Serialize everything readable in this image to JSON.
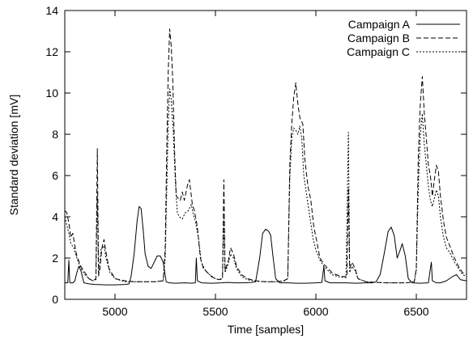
{
  "chart_data": {
    "type": "line",
    "title": "",
    "xlabel": "Time [samples]",
    "ylabel": "Standard deviation [mV]",
    "xlim": [
      4750,
      6750
    ],
    "ylim": [
      0,
      14
    ],
    "x_ticks": [
      5000,
      5500,
      6000,
      6500
    ],
    "y_ticks": [
      0,
      2,
      4,
      6,
      8,
      10,
      12,
      14
    ],
    "grid": false,
    "legend_position": "top-right",
    "series": [
      {
        "name": "Campaign A",
        "style": "solid",
        "points": [
          [
            4750,
            0.8
          ],
          [
            4765,
            0.8
          ],
          [
            4770,
            1.9
          ],
          [
            4775,
            0.8
          ],
          [
            4790,
            0.8
          ],
          [
            4800,
            0.9
          ],
          [
            4810,
            1.3
          ],
          [
            4820,
            1.6
          ],
          [
            4830,
            1.4
          ],
          [
            4845,
            0.8
          ],
          [
            4870,
            0.75
          ],
          [
            4900,
            0.72
          ],
          [
            4950,
            0.7
          ],
          [
            5000,
            0.7
          ],
          [
            5050,
            0.72
          ],
          [
            5070,
            0.75
          ],
          [
            5080,
            1.1
          ],
          [
            5095,
            2.2
          ],
          [
            5110,
            3.8
          ],
          [
            5120,
            4.5
          ],
          [
            5130,
            4.4
          ],
          [
            5140,
            3.4
          ],
          [
            5150,
            2.2
          ],
          [
            5165,
            1.6
          ],
          [
            5180,
            1.5
          ],
          [
            5195,
            1.8
          ],
          [
            5210,
            2.1
          ],
          [
            5225,
            2.1
          ],
          [
            5240,
            1.8
          ],
          [
            5255,
            0.85
          ],
          [
            5270,
            0.8
          ],
          [
            5300,
            0.78
          ],
          [
            5350,
            0.8
          ],
          [
            5380,
            0.78
          ],
          [
            5400,
            0.8
          ],
          [
            5405,
            2.0
          ],
          [
            5410,
            0.9
          ],
          [
            5430,
            0.8
          ],
          [
            5480,
            0.78
          ],
          [
            5530,
            0.8
          ],
          [
            5560,
            0.82
          ],
          [
            5600,
            0.8
          ],
          [
            5640,
            0.8
          ],
          [
            5680,
            0.82
          ],
          [
            5700,
            0.85
          ],
          [
            5720,
            2.0
          ],
          [
            5735,
            3.2
          ],
          [
            5750,
            3.4
          ],
          [
            5765,
            3.3
          ],
          [
            5775,
            3.1
          ],
          [
            5785,
            2.2
          ],
          [
            5800,
            1.0
          ],
          [
            5820,
            0.8
          ],
          [
            5860,
            0.8
          ],
          [
            5900,
            0.78
          ],
          [
            5950,
            0.78
          ],
          [
            6000,
            0.8
          ],
          [
            6030,
            0.82
          ],
          [
            6040,
            1.6
          ],
          [
            6045,
            0.9
          ],
          [
            6070,
            0.8
          ],
          [
            6100,
            0.8
          ],
          [
            6150,
            0.8
          ],
          [
            6200,
            0.78
          ],
          [
            6250,
            0.8
          ],
          [
            6280,
            0.8
          ],
          [
            6300,
            0.85
          ],
          [
            6320,
            1.2
          ],
          [
            6340,
            2.2
          ],
          [
            6360,
            3.3
          ],
          [
            6375,
            3.5
          ],
          [
            6390,
            3.1
          ],
          [
            6405,
            2.0
          ],
          [
            6420,
            2.4
          ],
          [
            6430,
            2.7
          ],
          [
            6445,
            2.1
          ],
          [
            6460,
            1.0
          ],
          [
            6480,
            0.8
          ],
          [
            6520,
            0.78
          ],
          [
            6560,
            0.8
          ],
          [
            6570,
            1.5
          ],
          [
            6575,
            1.8
          ],
          [
            6580,
            0.9
          ],
          [
            6600,
            0.8
          ],
          [
            6620,
            0.8
          ],
          [
            6650,
            0.9
          ],
          [
            6680,
            1.1
          ],
          [
            6700,
            1.2
          ],
          [
            6720,
            0.95
          ],
          [
            6750,
            0.9
          ]
        ]
      },
      {
        "name": "Campaign B",
        "style": "dashed",
        "points": [
          [
            4750,
            4.3
          ],
          [
            4760,
            4.2
          ],
          [
            4770,
            3.7
          ],
          [
            4780,
            3.0
          ],
          [
            4790,
            3.2
          ],
          [
            4800,
            2.6
          ],
          [
            4810,
            2.1
          ],
          [
            4830,
            1.6
          ],
          [
            4850,
            1.3
          ],
          [
            4870,
            1.0
          ],
          [
            4890,
            0.9
          ],
          [
            4905,
            1.0
          ],
          [
            4912,
            7.3
          ],
          [
            4918,
            1.2
          ],
          [
            4925,
            1.5
          ],
          [
            4935,
            2.5
          ],
          [
            4945,
            2.9
          ],
          [
            4955,
            2.3
          ],
          [
            4970,
            1.5
          ],
          [
            5000,
            1.0
          ],
          [
            5050,
            0.9
          ],
          [
            5100,
            0.85
          ],
          [
            5150,
            0.85
          ],
          [
            5200,
            0.85
          ],
          [
            5240,
            0.9
          ],
          [
            5250,
            2.5
          ],
          [
            5258,
            7.5
          ],
          [
            5265,
            11.0
          ],
          [
            5272,
            13.1
          ],
          [
            5280,
            12.3
          ],
          [
            5288,
            10.5
          ],
          [
            5297,
            7.0
          ],
          [
            5305,
            5.0
          ],
          [
            5315,
            4.9
          ],
          [
            5325,
            4.8
          ],
          [
            5335,
            5.2
          ],
          [
            5345,
            4.8
          ],
          [
            5360,
            5.5
          ],
          [
            5370,
            5.8
          ],
          [
            5385,
            4.6
          ],
          [
            5395,
            4.3
          ],
          [
            5410,
            3.5
          ],
          [
            5425,
            2.0
          ],
          [
            5440,
            1.5
          ],
          [
            5460,
            1.3
          ],
          [
            5480,
            1.1
          ],
          [
            5500,
            1.0
          ],
          [
            5520,
            0.95
          ],
          [
            5535,
            1.1
          ],
          [
            5542,
            5.8
          ],
          [
            5548,
            1.4
          ],
          [
            5565,
            1.9
          ],
          [
            5575,
            2.5
          ],
          [
            5590,
            2.2
          ],
          [
            5605,
            1.6
          ],
          [
            5630,
            1.2
          ],
          [
            5660,
            1.0
          ],
          [
            5700,
            0.9
          ],
          [
            5750,
            0.85
          ],
          [
            5800,
            0.85
          ],
          [
            5840,
            0.9
          ],
          [
            5860,
            1.0
          ],
          [
            5870,
            6.5
          ],
          [
            5880,
            8.5
          ],
          [
            5890,
            9.8
          ],
          [
            5900,
            10.5
          ],
          [
            5910,
            9.5
          ],
          [
            5920,
            8.8
          ],
          [
            5935,
            8.5
          ],
          [
            5945,
            6.8
          ],
          [
            5960,
            5.5
          ],
          [
            5975,
            4.8
          ],
          [
            5990,
            3.5
          ],
          [
            6005,
            2.8
          ],
          [
            6020,
            2.0
          ],
          [
            6040,
            1.7
          ],
          [
            6060,
            1.5
          ],
          [
            6080,
            1.3
          ],
          [
            6100,
            1.2
          ],
          [
            6130,
            1.1
          ],
          [
            6155,
            1.1
          ],
          [
            6162,
            5.4
          ],
          [
            6168,
            1.5
          ],
          [
            6180,
            1.8
          ],
          [
            6195,
            1.5
          ],
          [
            6210,
            1.0
          ],
          [
            6250,
            0.85
          ],
          [
            6300,
            0.82
          ],
          [
            6350,
            0.8
          ],
          [
            6400,
            0.8
          ],
          [
            6450,
            0.8
          ],
          [
            6490,
            0.85
          ],
          [
            6500,
            1.5
          ],
          [
            6510,
            7.0
          ],
          [
            6520,
            9.5
          ],
          [
            6530,
            10.8
          ],
          [
            6540,
            9.0
          ],
          [
            6550,
            7.8
          ],
          [
            6560,
            6.5
          ],
          [
            6570,
            6.0
          ],
          [
            6580,
            5.0
          ],
          [
            6590,
            5.8
          ],
          [
            6600,
            6.5
          ],
          [
            6610,
            6.2
          ],
          [
            6620,
            5.0
          ],
          [
            6635,
            3.8
          ],
          [
            6650,
            3.0
          ],
          [
            6670,
            2.5
          ],
          [
            6690,
            2.0
          ],
          [
            6710,
            1.6
          ],
          [
            6730,
            1.3
          ],
          [
            6750,
            1.2
          ]
        ]
      },
      {
        "name": "Campaign C",
        "style": "dotted",
        "points": [
          [
            4750,
            4.0
          ],
          [
            4760,
            3.6
          ],
          [
            4770,
            3.2
          ],
          [
            4780,
            2.7
          ],
          [
            4795,
            2.5
          ],
          [
            4810,
            2.0
          ],
          [
            4830,
            1.5
          ],
          [
            4850,
            1.2
          ],
          [
            4870,
            1.0
          ],
          [
            4890,
            0.9
          ],
          [
            4905,
            0.95
          ],
          [
            4912,
            5.0
          ],
          [
            4918,
            1.1
          ],
          [
            4930,
            2.4
          ],
          [
            4945,
            2.6
          ],
          [
            4955,
            2.0
          ],
          [
            4975,
            1.3
          ],
          [
            5000,
            1.0
          ],
          [
            5050,
            0.85
          ],
          [
            5100,
            0.85
          ],
          [
            5150,
            0.85
          ],
          [
            5200,
            0.85
          ],
          [
            5240,
            0.9
          ],
          [
            5250,
            2.0
          ],
          [
            5258,
            5.5
          ],
          [
            5265,
            8.5
          ],
          [
            5272,
            10.2
          ],
          [
            5280,
            9.7
          ],
          [
            5290,
            8.2
          ],
          [
            5300,
            5.8
          ],
          [
            5310,
            4.2
          ],
          [
            5320,
            4.0
          ],
          [
            5335,
            3.9
          ],
          [
            5350,
            4.2
          ],
          [
            5365,
            4.3
          ],
          [
            5380,
            4.6
          ],
          [
            5390,
            4.1
          ],
          [
            5400,
            3.8
          ],
          [
            5415,
            3.0
          ],
          [
            5430,
            1.8
          ],
          [
            5450,
            1.4
          ],
          [
            5470,
            1.2
          ],
          [
            5500,
            1.0
          ],
          [
            5520,
            0.95
          ],
          [
            5535,
            1.0
          ],
          [
            5542,
            3.9
          ],
          [
            5548,
            1.3
          ],
          [
            5560,
            1.6
          ],
          [
            5575,
            2.2
          ],
          [
            5590,
            2.0
          ],
          [
            5605,
            1.5
          ],
          [
            5630,
            1.1
          ],
          [
            5660,
            0.95
          ],
          [
            5700,
            0.88
          ],
          [
            5750,
            0.85
          ],
          [
            5800,
            0.85
          ],
          [
            5840,
            0.88
          ],
          [
            5860,
            1.0
          ],
          [
            5870,
            5.8
          ],
          [
            5880,
            7.8
          ],
          [
            5890,
            8.3
          ],
          [
            5900,
            8.2
          ],
          [
            5910,
            8.0
          ],
          [
            5920,
            8.4
          ],
          [
            5930,
            7.8
          ],
          [
            5940,
            6.0
          ],
          [
            5955,
            5.0
          ],
          [
            5970,
            4.0
          ],
          [
            5985,
            3.0
          ],
          [
            6000,
            2.4
          ],
          [
            6020,
            1.9
          ],
          [
            6040,
            1.6
          ],
          [
            6060,
            1.4
          ],
          [
            6080,
            1.2
          ],
          [
            6110,
            1.1
          ],
          [
            6150,
            1.05
          ],
          [
            6162,
            8.1
          ],
          [
            6168,
            1.3
          ],
          [
            6180,
            1.6
          ],
          [
            6195,
            1.4
          ],
          [
            6210,
            1.0
          ],
          [
            6250,
            0.85
          ],
          [
            6300,
            0.82
          ],
          [
            6350,
            0.8
          ],
          [
            6400,
            0.8
          ],
          [
            6450,
            0.8
          ],
          [
            6490,
            0.85
          ],
          [
            6500,
            1.4
          ],
          [
            6510,
            5.5
          ],
          [
            6520,
            8.0
          ],
          [
            6530,
            9.0
          ],
          [
            6540,
            7.5
          ],
          [
            6550,
            6.5
          ],
          [
            6560,
            5.5
          ],
          [
            6570,
            4.8
          ],
          [
            6580,
            4.5
          ],
          [
            6590,
            4.9
          ],
          [
            6600,
            5.3
          ],
          [
            6610,
            5.0
          ],
          [
            6620,
            4.0
          ],
          [
            6635,
            3.0
          ],
          [
            6650,
            2.5
          ],
          [
            6670,
            2.2
          ],
          [
            6690,
            1.8
          ],
          [
            6710,
            1.5
          ],
          [
            6730,
            1.2
          ],
          [
            6750,
            1.1
          ]
        ]
      }
    ]
  }
}
